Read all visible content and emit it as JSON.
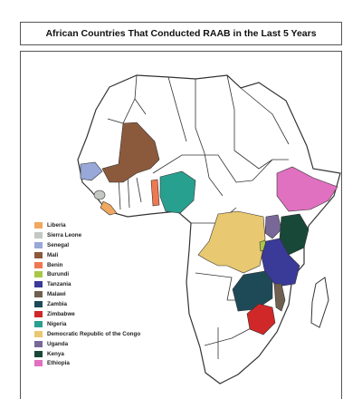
{
  "title": "African Countries That Conducted RAAB in the Last 5 Years",
  "legend": [
    {
      "label": "Liberia",
      "color": "#f0a860"
    },
    {
      "label": "Sierra Leone",
      "color": "#c4c8c4"
    },
    {
      "label": "Senegal",
      "color": "#98a8d8"
    },
    {
      "label": "Mali",
      "color": "#8b5a3c"
    },
    {
      "label": "Benin",
      "color": "#f07850"
    },
    {
      "label": "Burundi",
      "color": "#a8c848"
    },
    {
      "label": "Tanzania",
      "color": "#3a3a98"
    },
    {
      "label": "Malawi",
      "color": "#706050"
    },
    {
      "label": "Zambia",
      "color": "#1e4a58"
    },
    {
      "label": "Zimbabwe",
      "color": "#d02828"
    },
    {
      "label": "Nigeria",
      "color": "#28a090"
    },
    {
      "label": "Democratic Republic of the Congo",
      "color": "#e8c870"
    },
    {
      "label": "Uganda",
      "color": "#786898"
    },
    {
      "label": "Kenya",
      "color": "#184838"
    },
    {
      "label": "Ethiopia",
      "color": "#e070c0"
    }
  ]
}
